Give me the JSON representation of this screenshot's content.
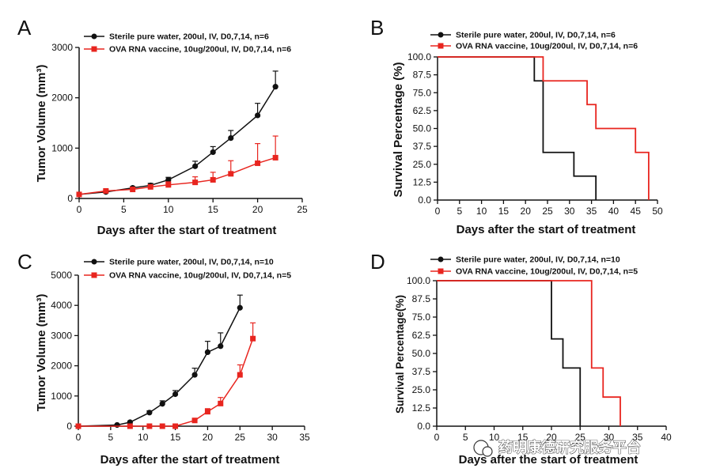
{
  "colors": {
    "control": "#111111",
    "vaccine": "#e8251f"
  },
  "watermark": {
    "text": "药明康德研究服务平台"
  },
  "chart_data": [
    {
      "panel": "A",
      "type": "line",
      "xlabel": "Days after the start of treatment",
      "ylabel": "Tumor Volume (mm³)",
      "xlim": [
        0,
        25
      ],
      "ylim": [
        0,
        3000
      ],
      "xticks": [
        0,
        5,
        10,
        15,
        20,
        25
      ],
      "yticks": [
        0,
        1000,
        2000,
        3000
      ],
      "legend": "top-left",
      "series": [
        {
          "name": "Sterile pure water, 200ul, IV, D0,7,14, n=6",
          "color": "#111111",
          "marker": "circle",
          "x": [
            0,
            3,
            6,
            8,
            10,
            13,
            15,
            17,
            20,
            22
          ],
          "y": [
            80,
            130,
            210,
            260,
            370,
            640,
            920,
            1200,
            1650,
            2220
          ],
          "err": [
            20,
            20,
            25,
            40,
            50,
            100,
            110,
            150,
            240,
            310
          ]
        },
        {
          "name": "OVA RNA vaccine, 10ug/200ul, IV, D0,7,14, n=6",
          "color": "#e8251f",
          "marker": "square",
          "x": [
            0,
            3,
            6,
            8,
            10,
            13,
            15,
            17,
            20,
            22
          ],
          "y": [
            80,
            150,
            180,
            230,
            270,
            320,
            370,
            490,
            700,
            810
          ],
          "err": [
            15,
            20,
            30,
            40,
            60,
            110,
            150,
            260,
            390,
            430
          ]
        }
      ]
    },
    {
      "panel": "B",
      "type": "line",
      "xlabel": "Days after the start of treatment",
      "ylabel": "Survival Percentage (%)",
      "xlim": [
        0,
        50
      ],
      "ylim": [
        0,
        100
      ],
      "xticks": [
        0,
        5,
        10,
        15,
        20,
        25,
        30,
        35,
        40,
        45,
        50
      ],
      "yticks": [
        "0.0",
        "12.5",
        "25.0",
        "37.5",
        "50.0",
        "62.5",
        "75.0",
        "87.5",
        "100.0"
      ],
      "legend": "top",
      "series": [
        {
          "name": "Sterile pure water, 200ul, IV, D0,7,14, n=6",
          "color": "#111111",
          "x": [
            0,
            22,
            24,
            31,
            36
          ],
          "y": [
            100,
            83.3,
            33.3,
            16.7,
            0
          ]
        },
        {
          "name": "OVA RNA vaccine, 10ug/200ul, IV, D0,7,14, n=6",
          "color": "#e8251f",
          "x": [
            0,
            24,
            34,
            36,
            45,
            48
          ],
          "y": [
            100,
            83.3,
            66.7,
            50,
            33.3,
            0
          ]
        }
      ]
    },
    {
      "panel": "C",
      "type": "line",
      "xlabel": "Days after the start of treatment",
      "ylabel": "Tumor Volume (mm³)",
      "xlim": [
        0,
        35
      ],
      "ylim": [
        0,
        5000
      ],
      "xticks": [
        0,
        5,
        10,
        15,
        20,
        25,
        30,
        35
      ],
      "yticks": [
        0,
        1000,
        2000,
        3000,
        4000,
        5000
      ],
      "legend": "top-left",
      "series": [
        {
          "name": "Sterile pure water, 200ul, IV, D0,7,14, n=10",
          "color": "#111111",
          "marker": "circle",
          "x": [
            0,
            6,
            8,
            11,
            13,
            15,
            18,
            20,
            22,
            25
          ],
          "y": [
            0,
            40,
            130,
            450,
            740,
            1060,
            1700,
            2450,
            2650,
            3920
          ],
          "err": [
            0,
            20,
            40,
            60,
            100,
            120,
            220,
            360,
            440,
            420
          ]
        },
        {
          "name": "OVA RNA vaccine, 10ug/200ul, IV, D0,7,14, n=5",
          "color": "#e8251f",
          "marker": "square",
          "x": [
            0,
            8,
            11,
            13,
            15,
            18,
            20,
            22,
            25,
            27
          ],
          "y": [
            0,
            0,
            0,
            0,
            0,
            190,
            480,
            750,
            1700,
            2900
          ],
          "err": [
            0,
            0,
            0,
            0,
            0,
            30,
            100,
            200,
            330,
            520
          ]
        }
      ]
    },
    {
      "panel": "D",
      "type": "line",
      "xlabel": "Days after the start of treatment",
      "ylabel": "Survival Percentage(%)",
      "xlim": [
        0,
        40
      ],
      "ylim": [
        0,
        100
      ],
      "xticks": [
        0,
        5,
        10,
        15,
        20,
        25,
        30,
        35,
        40
      ],
      "yticks": [
        "0.0",
        "12.5",
        "25.0",
        "37.5",
        "50.0",
        "62.5",
        "75.0",
        "87.5",
        "100.0"
      ],
      "legend": "top",
      "series": [
        {
          "name": "Sterile pure water, 200ul, IV, D0,7,14, n=10",
          "color": "#111111",
          "x": [
            0,
            20,
            22,
            25
          ],
          "y": [
            100,
            60,
            40,
            0
          ]
        },
        {
          "name": "OVA RNA vaccine, 10ug/200ul, IV, D0,7,14, n=5",
          "color": "#e8251f",
          "x": [
            0,
            27,
            29,
            32
          ],
          "y": [
            100,
            40,
            20,
            0
          ]
        }
      ]
    }
  ]
}
